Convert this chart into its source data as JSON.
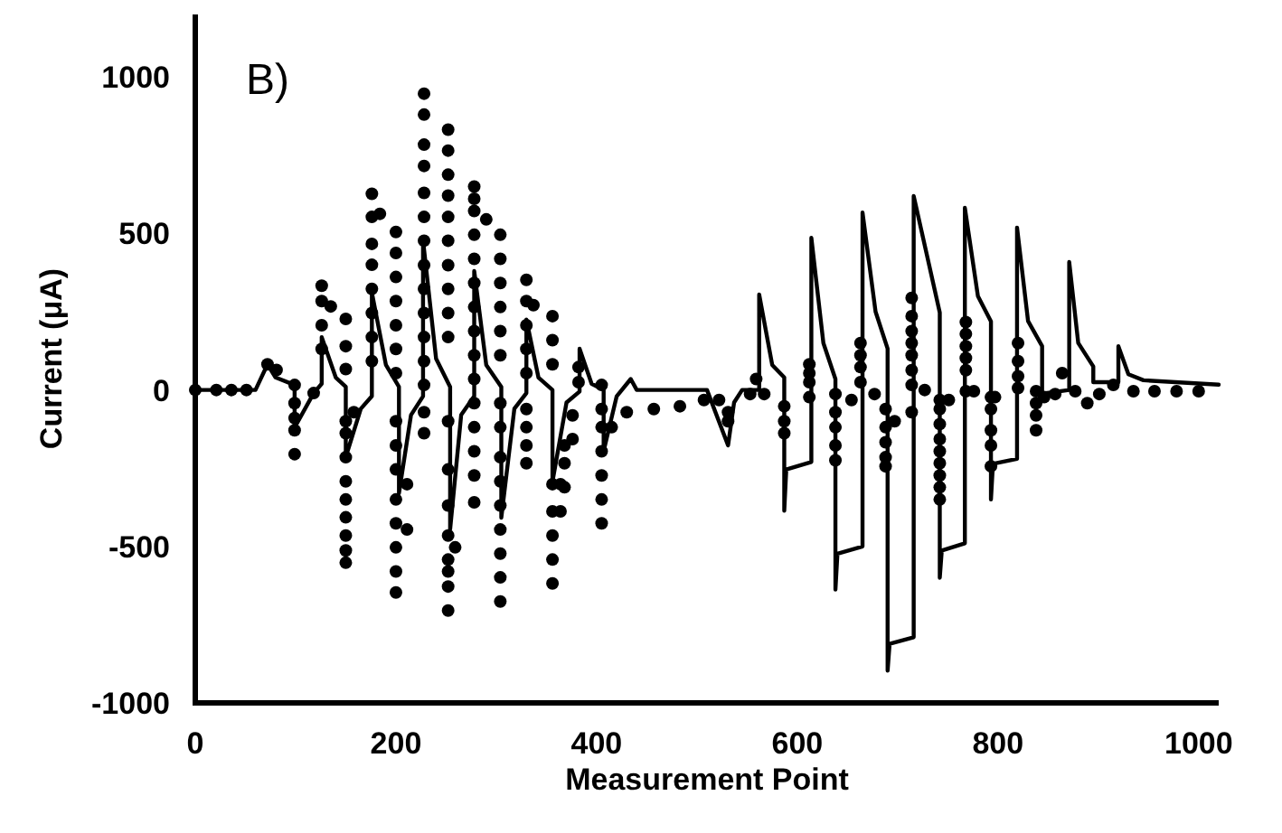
{
  "chart_data": {
    "type": "scatter",
    "xlabel": "Measurement Point",
    "ylabel": "Current (μA)",
    "annotations": [
      "B)"
    ],
    "xlim": [
      0,
      1020
    ],
    "ylim": [
      -1000,
      1200
    ],
    "xticks": [
      0,
      200,
      400,
      600,
      800,
      1000
    ],
    "yticks": [
      -1000,
      -500,
      0,
      500,
      1000
    ],
    "grid": false,
    "series": [
      {
        "type": "line",
        "color": "#000000",
        "marker": "none",
        "line_style": "solid",
        "x": [
          0,
          60,
          72,
          80,
          99,
          99,
          118,
          126,
          126,
          140,
          150,
          150,
          165,
          176,
          176,
          190,
          203,
          203,
          215,
          227,
          227,
          240,
          254,
          254,
          265,
          278,
          278,
          290,
          305,
          305,
          318,
          330,
          330,
          342,
          356,
          356,
          370,
          383,
          383,
          395,
          407,
          407,
          420,
          434,
          440,
          459,
          480,
          510,
          531,
          537,
          545,
          562,
          562,
          575,
          587,
          587,
          589,
          614,
          614,
          626,
          638,
          638,
          640,
          665,
          665,
          678,
          690,
          690,
          692,
          716,
          716,
          742,
          742,
          744,
          767,
          767,
          780,
          793,
          793,
          795,
          819,
          819,
          830,
          844,
          844,
          871,
          871,
          880,
          895,
          895,
          920,
          920,
          930,
          945,
          1020
        ],
        "values": [
          0,
          0,
          82,
          40,
          16,
          -120,
          -10,
          20,
          169,
          40,
          10,
          -214,
          -60,
          -20,
          311,
          80,
          10,
          -330,
          -80,
          -20,
          478,
          100,
          10,
          -445,
          -80,
          -20,
          380,
          80,
          10,
          -408,
          -60,
          -10,
          225,
          40,
          0,
          -293,
          -40,
          -5,
          132,
          20,
          0,
          -195,
          -20,
          35,
          0,
          0,
          0,
          0,
          -177,
          -40,
          0,
          0,
          305,
          80,
          40,
          -386,
          -254,
          -230,
          486,
          150,
          35,
          -638,
          -523,
          -500,
          567,
          250,
          132,
          -897,
          -811,
          -790,
          620,
          247,
          -600,
          -513,
          -490,
          582,
          300,
          219,
          -350,
          -236,
          -220,
          519,
          220,
          140,
          -12,
          0,
          409,
          150,
          75,
          25,
          25,
          140,
          50,
          31,
          17
        ]
      },
      {
        "color": "#000000",
        "marker": "circle",
        "x": [
          0,
          21,
          36,
          51,
          72,
          81,
          99,
          99,
          99,
          99,
          99,
          118,
          126,
          126,
          126,
          126,
          135,
          150,
          150,
          150,
          150,
          150,
          150,
          150,
          150,
          150,
          150,
          150,
          150,
          158,
          176,
          176,
          176,
          176,
          176,
          176,
          176,
          176,
          184,
          200,
          200,
          200,
          200,
          200,
          200,
          200,
          200,
          200,
          200,
          200,
          200,
          200,
          200,
          200,
          211,
          211,
          228,
          228,
          228,
          228,
          228,
          228,
          228,
          228,
          228,
          228,
          228,
          228,
          228,
          228,
          228,
          252,
          252,
          252,
          252,
          252,
          252,
          252,
          252,
          252,
          252,
          252,
          252,
          252,
          252,
          252,
          252,
          252,
          252,
          259,
          278,
          278,
          278,
          278,
          278,
          278,
          278,
          278,
          278,
          278,
          278,
          278,
          278,
          278,
          278,
          290,
          304,
          304,
          304,
          304,
          304,
          304,
          304,
          304,
          304,
          304,
          304,
          304,
          304,
          304,
          304,
          330,
          330,
          330,
          330,
          330,
          330,
          330,
          330,
          330,
          337,
          356,
          356,
          356,
          356,
          356,
          356,
          356,
          356,
          364,
          364,
          368,
          368,
          368,
          376,
          376,
          382,
          382,
          405,
          405,
          405,
          405,
          405,
          405,
          405,
          415,
          430,
          457,
          483,
          507,
          522,
          531,
          531,
          553,
          559,
          567,
          587,
          587,
          587,
          612,
          612,
          612,
          612,
          638,
          638,
          638,
          638,
          638,
          654,
          663,
          663,
          663,
          663,
          677,
          688,
          688,
          688,
          688,
          688,
          697,
          714,
          714,
          714,
          714,
          714,
          714,
          714,
          714,
          727,
          742,
          742,
          742,
          742,
          742,
          742,
          742,
          742,
          742,
          751,
          768,
          768,
          768,
          768,
          768,
          768,
          776,
          793,
          793,
          793,
          793,
          793,
          797,
          820,
          820,
          820,
          820,
          838,
          838,
          838,
          838,
          846,
          857,
          864,
          877,
          889,
          901,
          915,
          935,
          956,
          978,
          1000
        ],
        "values": [
          0,
          0,
          0,
          0,
          82,
          64,
          16,
          -42,
          -90,
          -129,
          -205,
          -10,
          333,
          284,
          207,
          131,
          267,
          227,
          140,
          67,
          -100,
          -138,
          -215,
          -292,
          -350,
          -407,
          -465,
          -513,
          -552,
          -71,
          627,
          553,
          467,
          400,
          323,
          246,
          169,
          92,
          563,
          505,
          438,
          361,
          284,
          207,
          131,
          54,
          -100,
          -177,
          -254,
          -350,
          -426,
          -503,
          -580,
          -647,
          -301,
          -446,
          947,
          880,
          784,
          716,
          630,
          553,
          477,
          399,
          323,
          246,
          169,
          92,
          16,
          -71,
          -138,
          832,
          765,
          688,
          621,
          553,
          477,
          399,
          323,
          246,
          169,
          -100,
          -254,
          -369,
          -465,
          -542,
          -580,
          -628,
          -705,
          -503,
          650,
          611,
          572,
          496,
          419,
          342,
          265,
          188,
          111,
          35,
          -42,
          -119,
          -196,
          -273,
          -359,
          545,
          496,
          419,
          342,
          265,
          188,
          111,
          -42,
          -119,
          -215,
          -292,
          -369,
          -446,
          -523,
          -599,
          -676,
          352,
          284,
          207,
          131,
          54,
          -61,
          -119,
          -177,
          -234,
          271,
          236,
          159,
          82,
          -301,
          -388,
          -465,
          -542,
          -618,
          -301,
          -388,
          -177,
          -234,
          -311,
          -81,
          -157,
          73,
          25,
          16,
          -61,
          -119,
          -196,
          -273,
          -350,
          -426,
          -119,
          -71,
          -61,
          -52,
          -32,
          -32,
          -71,
          -100,
          -13,
          35,
          -13,
          -52,
          -100,
          -138,
          82,
          54,
          25,
          -23,
          -13,
          -71,
          -119,
          -177,
          -225,
          -32,
          150,
          111,
          73,
          25,
          -13,
          -61,
          -119,
          -167,
          -215,
          -244,
          -100,
          294,
          236,
          188,
          150,
          111,
          63,
          16,
          -71,
          0,
          -32,
          -61,
          -109,
          -157,
          -196,
          -234,
          -273,
          -311,
          -350,
          -32,
          217,
          179,
          140,
          102,
          63,
          -4,
          -4,
          -23,
          -61,
          -129,
          -177,
          -244,
          -23,
          150,
          92,
          44,
          6,
          -4,
          -42,
          -81,
          -129,
          -23,
          -13,
          54,
          -4,
          -42,
          -13,
          16,
          -4,
          -4,
          -4,
          -4
        ]
      }
    ]
  }
}
